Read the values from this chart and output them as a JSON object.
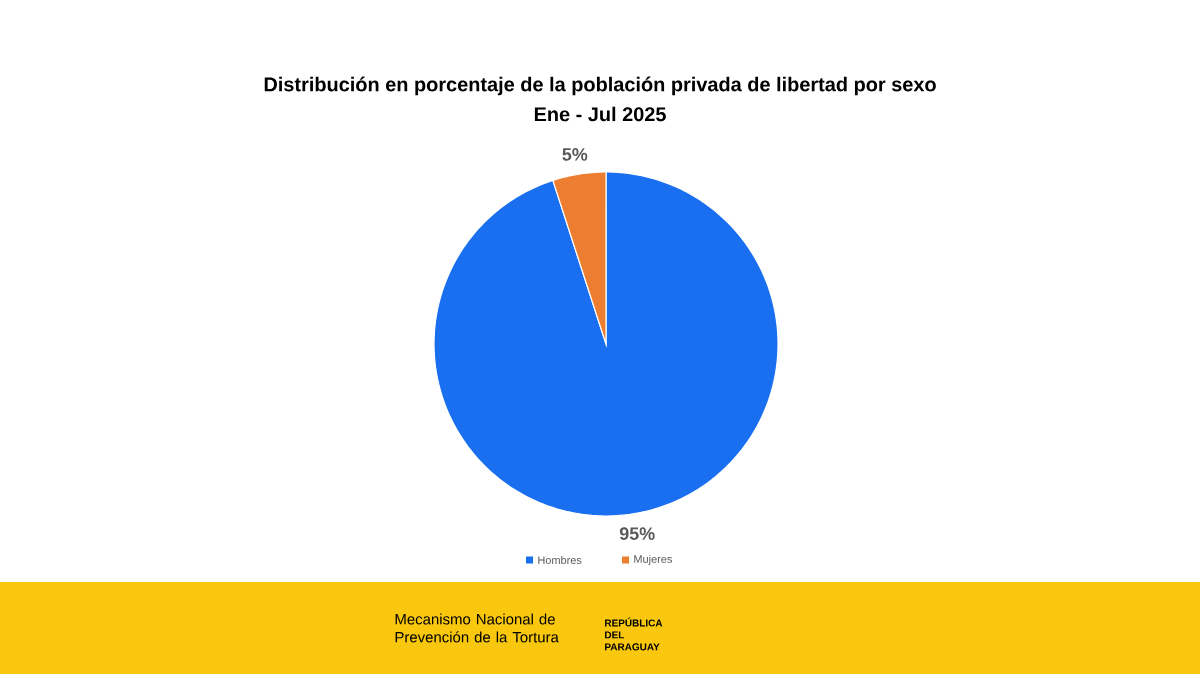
{
  "chart_data": {
    "type": "pie",
    "title": "Distribución en porcentaje de la población privada de libertad por sexo",
    "subtitle": "Ene - Jul 2025",
    "categories": [
      "Hombres",
      "Mujeres"
    ],
    "values": [
      95,
      5
    ],
    "colors": [
      "#1a6ff0",
      "#ed7d31"
    ],
    "value_labels": [
      "95%",
      "5%"
    ],
    "legend": "bottom",
    "annotations": [
      "Mecanismo Nacional de Prevención de la Tortura",
      "REPÚBLICA DEL PARAGUAY"
    ]
  }
}
